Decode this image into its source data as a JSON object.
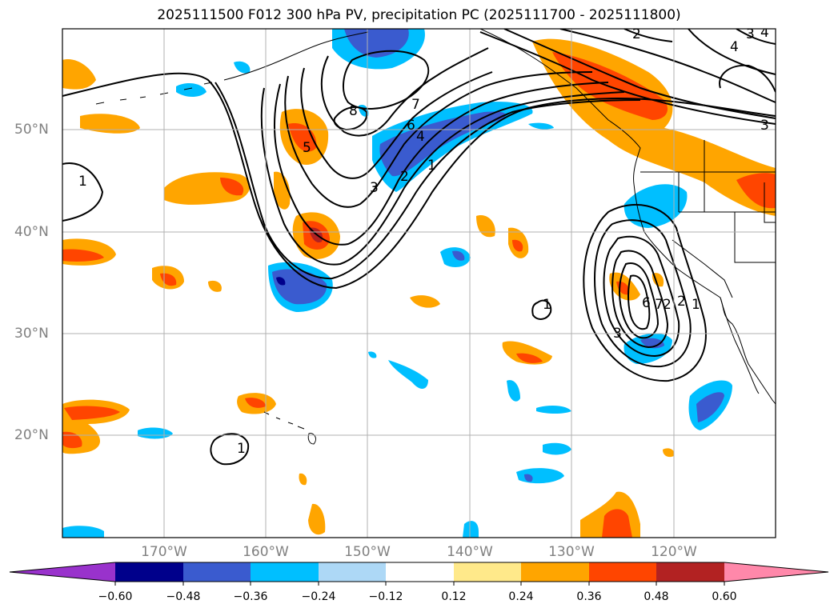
{
  "title": "2025111500 F012 300 hPa PV, precipitation PC (2025111700 - 2025111800)",
  "map": {
    "lon_labels": [
      "170°W",
      "160°W",
      "150°W",
      "140°W",
      "130°W",
      "120°W"
    ],
    "lat_labels": [
      "50°N",
      "40°N",
      "30°N",
      "20°N"
    ],
    "contour_labels": [
      "8",
      "7",
      "6",
      "5",
      "4",
      "3",
      "2",
      "1",
      "1",
      "1",
      "1",
      "1",
      "2",
      "3",
      "4",
      "3",
      "2",
      "6",
      "7",
      "2",
      "3",
      "4"
    ],
    "colors": {
      "neg_extreme": "#9932cc",
      "neg_060": "#00008b",
      "neg_048": "#3a5bcf",
      "neg_036": "#00bfff",
      "neg_024": "#add8f6",
      "neutral": "#ffffff",
      "pos_012": "#ffe98a",
      "pos_024": "#ffa500",
      "pos_036": "#ff4500",
      "pos_048": "#b22222",
      "pos_extreme": "#ff88aa"
    }
  },
  "colorbar": {
    "ticks": [
      "−0.60",
      "−0.48",
      "−0.36",
      "−0.24",
      "−0.12",
      "0.12",
      "0.24",
      "0.36",
      "0.48",
      "0.60"
    ]
  }
}
